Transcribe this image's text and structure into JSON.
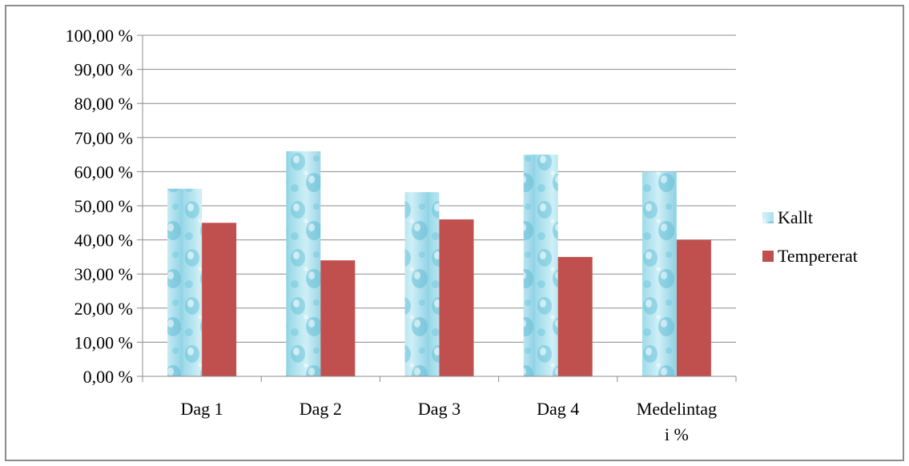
{
  "chart_data": {
    "type": "bar",
    "categories": [
      "Dag 1",
      "Dag 2",
      "Dag 3",
      "Dag 4",
      "Medelintag i %"
    ],
    "category_lines": [
      [
        "Dag 1"
      ],
      [
        "Dag 2"
      ],
      [
        "Dag 3"
      ],
      [
        "Dag 4"
      ],
      [
        "Medelintag",
        "i %"
      ]
    ],
    "series": [
      {
        "name": "Kallt",
        "values": [
          55,
          66,
          54,
          65,
          60
        ],
        "color": "#7fd0e3",
        "fill": "water-droplet-texture"
      },
      {
        "name": "Tempererat",
        "values": [
          45,
          34,
          46,
          35,
          40
        ],
        "color": "#c0504d"
      }
    ],
    "ylim": [
      0,
      100
    ],
    "yticks": [
      0,
      10,
      20,
      30,
      40,
      50,
      60,
      70,
      80,
      90,
      100
    ],
    "ytick_labels": [
      "0,00 %",
      "10,00 %",
      "20,00 %",
      "30,00 %",
      "40,00 %",
      "50,00 %",
      "60,00 %",
      "70,00 %",
      "80,00 %",
      "90,00 %",
      "100,00 %"
    ],
    "grid": true,
    "legend_position": "right",
    "title": "",
    "xlabel": "",
    "ylabel": ""
  }
}
